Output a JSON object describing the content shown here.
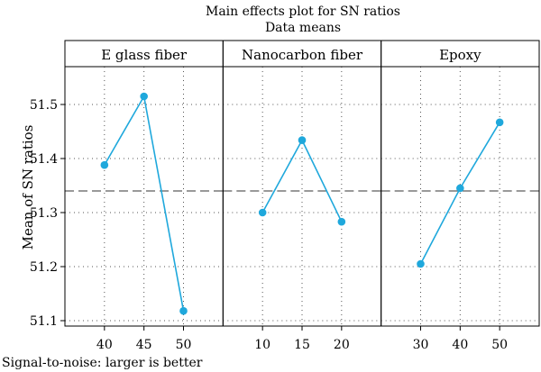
{
  "chart_data": {
    "type": "line",
    "title": "Main effects plot for SN ratios",
    "subtitle": "Data means",
    "ylabel": "Mean of SN ratios",
    "footnote": "Signal-to-noise: larger is better",
    "ylim": [
      51.09,
      51.57
    ],
    "yticks": [
      "51.1",
      "51.2",
      "51.3",
      "51.4",
      "51.5"
    ],
    "reference_mean": 51.34,
    "grid": true,
    "color": "#1fa8dc",
    "panels": [
      {
        "name": "E glass fiber",
        "levels": [
          "40",
          "45",
          "50"
        ],
        "values": [
          51.388,
          51.515,
          51.118
        ]
      },
      {
        "name": "Nanocarbon fiber",
        "levels": [
          "10",
          "15",
          "20"
        ],
        "values": [
          51.3,
          51.434,
          51.283
        ]
      },
      {
        "name": "Epoxy",
        "levels": [
          "30",
          "40",
          "50"
        ],
        "values": [
          51.205,
          51.345,
          51.467
        ]
      }
    ]
  }
}
